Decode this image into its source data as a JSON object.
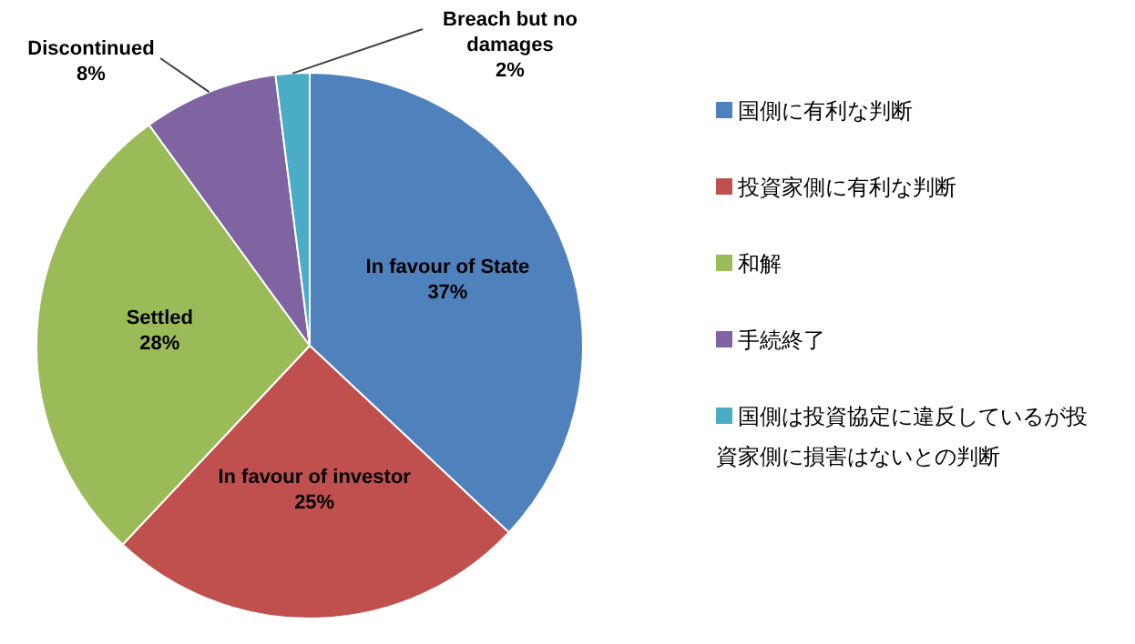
{
  "chart_data": {
    "type": "pie",
    "categories": [
      "国側に有利な判断",
      "投資家側に有利な判断",
      "和解",
      "手続終了",
      "国側は投資協定に違反しているが投資家側に損害はないとの判断"
    ],
    "values": [
      37,
      25,
      28,
      8,
      2
    ],
    "colors": [
      "#4f81bd",
      "#c0504d",
      "#9bbb59",
      "#8064a2",
      "#4bacc6"
    ],
    "value_labels": [
      "In favour of State\n37%",
      "In favour of investor\n25%",
      "Settled\n28%",
      "Discontinued\n8%",
      "Breach but no\ndamages\n2%"
    ],
    "legend": "right"
  }
}
